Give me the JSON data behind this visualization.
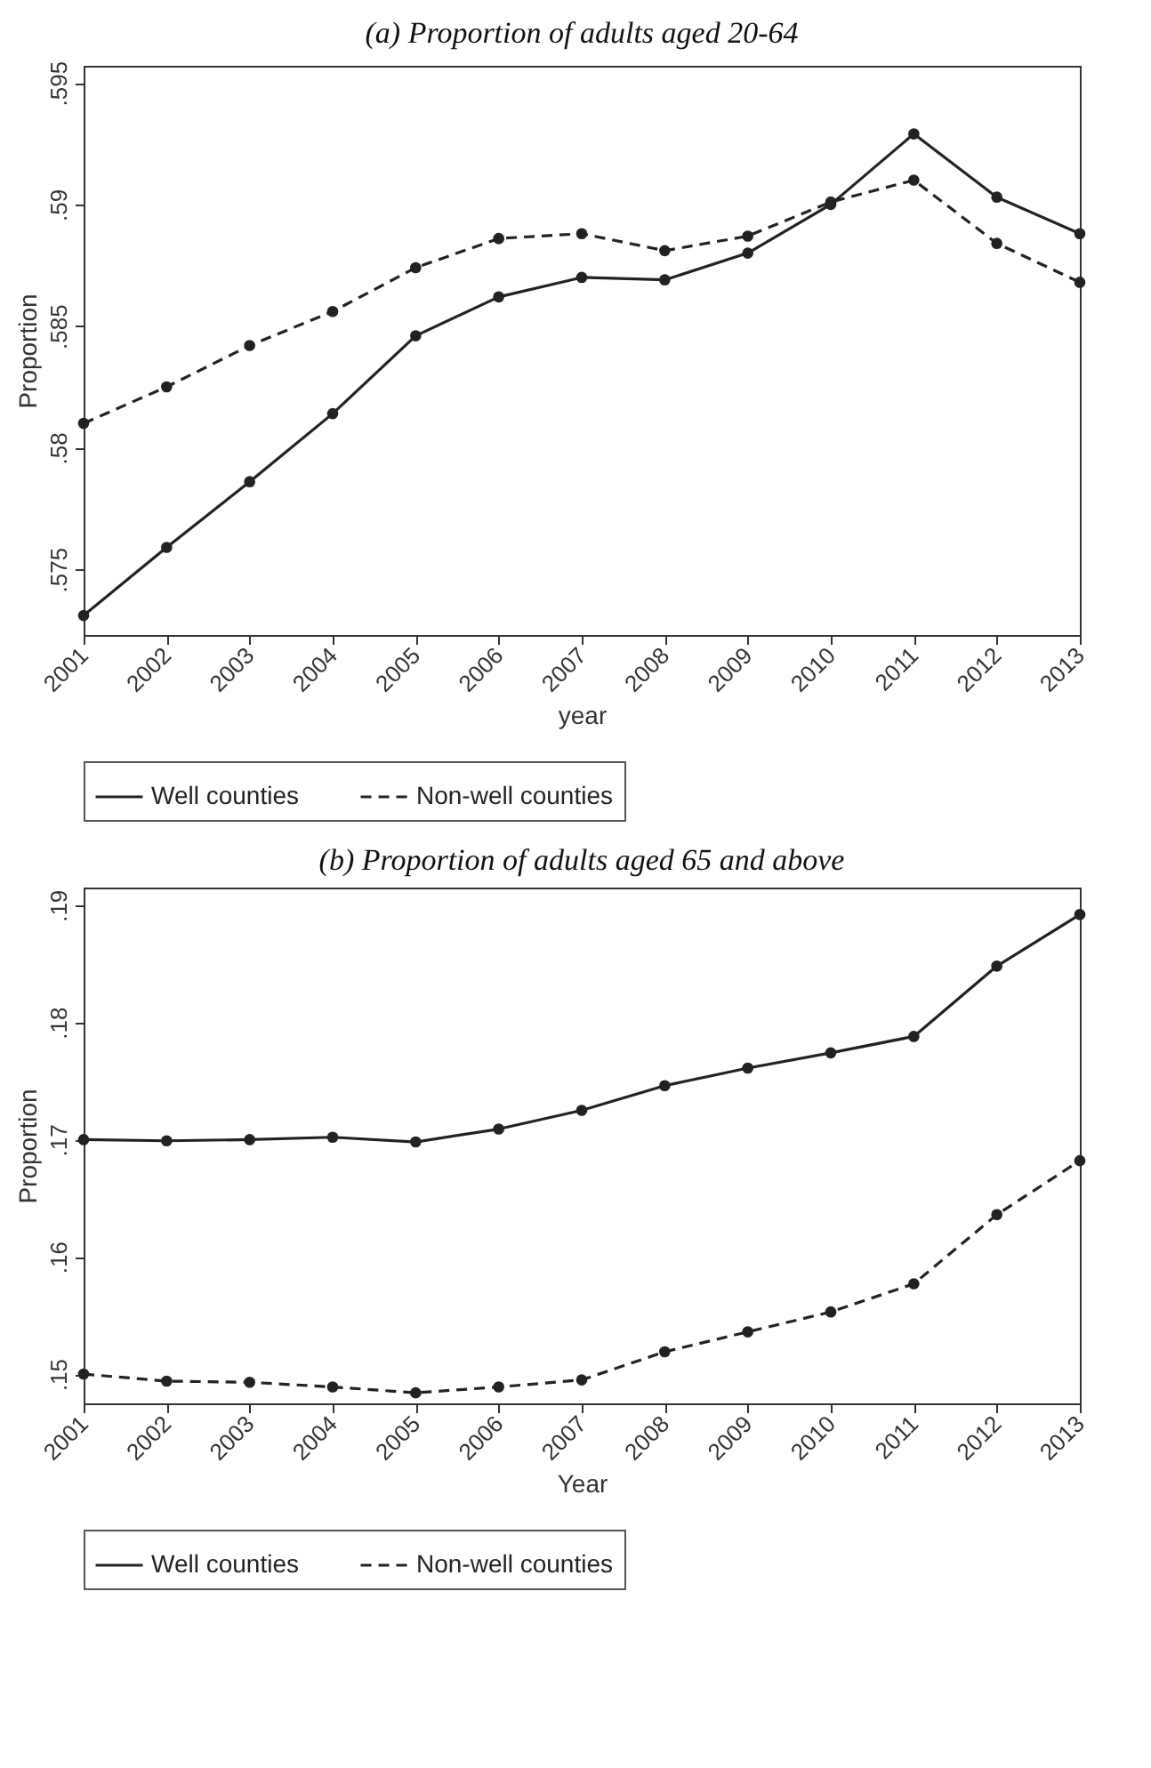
{
  "chart_data": [
    {
      "type": "line",
      "title": "(a) Proportion of adults aged 20-64",
      "xlabel": "year",
      "ylabel": "Proportion",
      "x": [
        2001,
        2002,
        2003,
        2004,
        2005,
        2006,
        2007,
        2008,
        2009,
        2010,
        2011,
        2012,
        2013
      ],
      "series": [
        {
          "name": "Well counties",
          "color": "#222222",
          "line_style": "solid",
          "values": [
            0.5731,
            0.5759,
            0.5786,
            0.5814,
            0.5846,
            0.5862,
            0.587,
            0.5869,
            0.588,
            0.59,
            0.5929,
            0.5903,
            0.5888
          ]
        },
        {
          "name": "Non-well counties",
          "color": "#222222",
          "line_style": "dashed",
          "values": [
            0.581,
            0.5825,
            0.5842,
            0.5856,
            0.5874,
            0.5886,
            0.5888,
            0.5881,
            0.5887,
            0.5901,
            0.591,
            0.5884,
            0.5868
          ]
        }
      ],
      "xlim": [
        2001,
        2013
      ],
      "xticks": [
        2001,
        2002,
        2003,
        2004,
        2005,
        2006,
        2007,
        2008,
        2009,
        2010,
        2011,
        2012,
        2013
      ],
      "ylim": [
        0.5723,
        0.5957
      ],
      "yticks": [
        {
          "value": 0.575,
          "label": ".575"
        },
        {
          "value": 0.58,
          "label": ".58"
        },
        {
          "value": 0.585,
          "label": ".585"
        },
        {
          "value": 0.59,
          "label": ".59"
        },
        {
          "value": 0.595,
          "label": ".595"
        }
      ],
      "marker": "circle",
      "grid": false,
      "legend": "bottom"
    },
    {
      "type": "line",
      "title": "(b) Proportion of adults aged 65 and above",
      "xlabel": "Year",
      "ylabel": "Proportion",
      "x": [
        2001,
        2002,
        2003,
        2004,
        2005,
        2006,
        2007,
        2008,
        2009,
        2010,
        2011,
        2012,
        2013
      ],
      "series": [
        {
          "name": "Well counties",
          "color": "#222222",
          "line_style": "solid",
          "values": [
            0.17,
            0.1699,
            0.17,
            0.1702,
            0.1698,
            0.1709,
            0.1725,
            0.1746,
            0.1761,
            0.1774,
            0.1788,
            0.1848,
            0.1892
          ]
        },
        {
          "name": "Non-well counties",
          "color": "#222222",
          "line_style": "dashed",
          "values": [
            0.15,
            0.1494,
            0.1493,
            0.1489,
            0.1484,
            0.1489,
            0.1495,
            0.1519,
            0.1536,
            0.1553,
            0.1577,
            0.1636,
            0.1682
          ]
        }
      ],
      "xlim": [
        2001,
        2013
      ],
      "xticks": [
        2001,
        2002,
        2003,
        2004,
        2005,
        2006,
        2007,
        2008,
        2009,
        2010,
        2011,
        2012,
        2013
      ],
      "ylim": [
        0.1475,
        0.1915
      ],
      "yticks": [
        {
          "value": 0.15,
          "label": ".15"
        },
        {
          "value": 0.16,
          "label": ".16"
        },
        {
          "value": 0.17,
          "label": ".17"
        },
        {
          "value": 0.18,
          "label": ".18"
        },
        {
          "value": 0.19,
          "label": ".19"
        }
      ],
      "marker": "circle",
      "grid": false,
      "legend": "bottom"
    }
  ]
}
